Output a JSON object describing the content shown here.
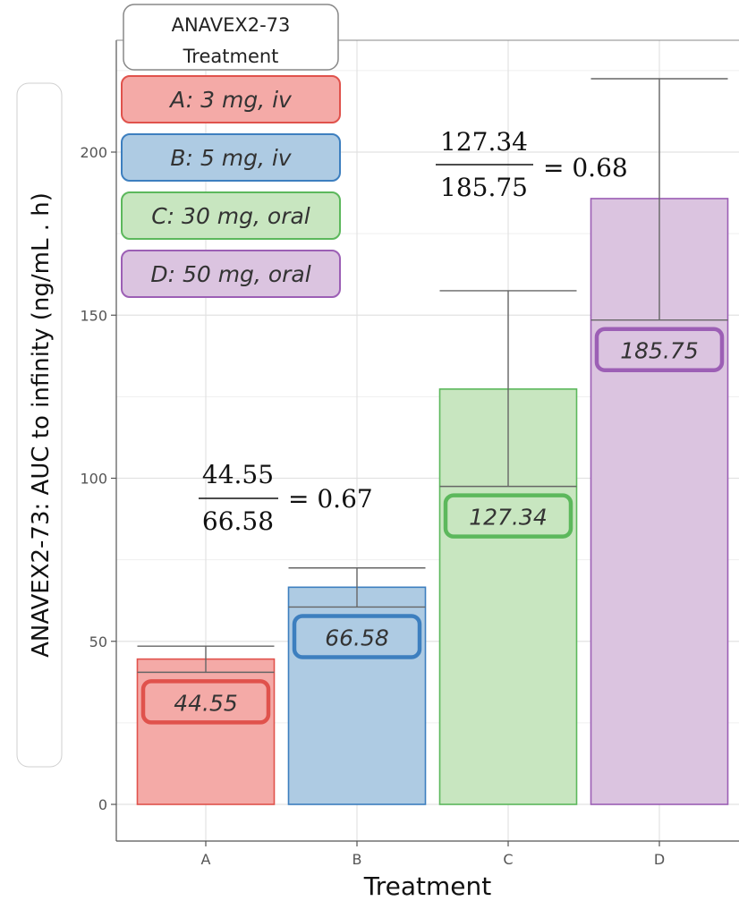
{
  "chart_data": {
    "type": "bar",
    "xlabel": "Treatment",
    "ylabel": "ANAVEX2-73: AUC to infinity (ng/mL . h)",
    "ylim": [
      0,
      225
    ],
    "y_ticks": [
      0,
      50,
      100,
      150,
      200
    ],
    "grid": true,
    "legend_position": "top-left",
    "categories": [
      "A",
      "B",
      "C",
      "D"
    ],
    "values": [
      44.55,
      66.58,
      127.34,
      185.75
    ],
    "value_labels": [
      "44.55",
      "66.58",
      "127.34",
      "185.75"
    ],
    "medians": [
      40.5,
      60.5,
      97.5,
      148.5
    ],
    "whisker_upper": [
      48.5,
      72.5,
      157.5,
      222.5
    ],
    "colors": {
      "fill": [
        "#f4aaa7",
        "#aecbe3",
        "#c8e6c0",
        "#dbc4e0"
      ],
      "stroke": [
        "#e0524c",
        "#3d7fbf",
        "#5cb85c",
        "#9c5fb5"
      ]
    },
    "legend": {
      "title_line1": "ANAVEX2-73",
      "title_line2": "Treatment",
      "entries": [
        "A: 3 mg, iv",
        "B: 5 mg, iv",
        "C: 30 mg, oral",
        "D: 50 mg, oral"
      ]
    },
    "annotations": [
      {
        "numerator": "44.55",
        "denominator": "66.58",
        "result": "= 0.67"
      },
      {
        "numerator": "127.34",
        "denominator": "185.75",
        "result": "= 0.68"
      }
    ]
  }
}
